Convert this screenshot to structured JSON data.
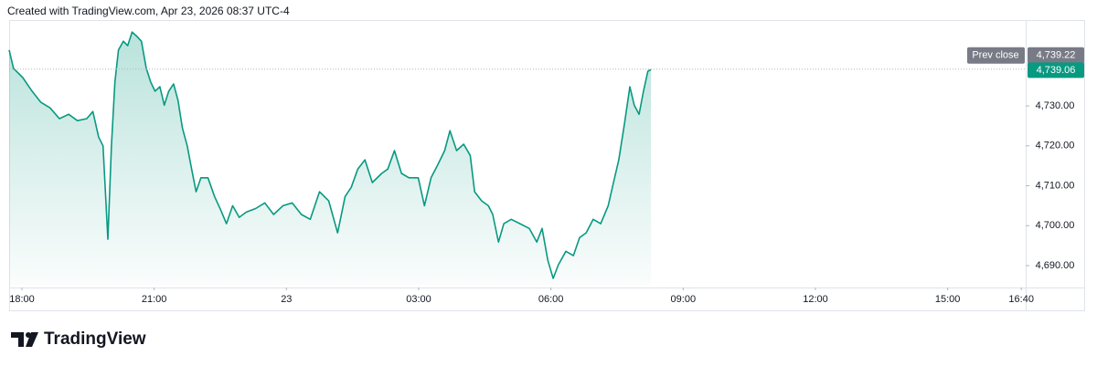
{
  "chart_data": {
    "type": "area",
    "title": "Created with TradingView.com, Apr 23, 2026 08:37 UTC-4",
    "brand": "TradingView",
    "x": [
      -0.29,
      -0.19,
      0.02,
      0.23,
      0.43,
      0.64,
      0.85,
      1.06,
      1.26,
      1.47,
      1.61,
      1.74,
      1.84,
      1.95,
      2.03,
      2.11,
      2.19,
      2.3,
      2.4,
      2.5,
      2.61,
      2.71,
      2.82,
      2.92,
      3.02,
      3.13,
      3.23,
      3.33,
      3.44,
      3.54,
      3.64,
      3.75,
      3.85,
      3.95,
      4.06,
      4.22,
      4.37,
      4.51,
      4.64,
      4.78,
      4.93,
      5.09,
      5.3,
      5.51,
      5.71,
      5.92,
      6.13,
      6.34,
      6.54,
      6.75,
      6.96,
      7.16,
      7.33,
      7.47,
      7.62,
      7.78,
      7.95,
      8.16,
      8.3,
      8.45,
      8.61,
      8.78,
      8.99,
      9.13,
      9.28,
      9.44,
      9.59,
      9.71,
      9.86,
      10.02,
      10.17,
      10.27,
      10.43,
      10.58,
      10.68,
      10.81,
      10.93,
      11.1,
      11.3,
      11.51,
      11.68,
      11.8,
      11.93,
      12.05,
      12.17,
      12.34,
      12.51,
      12.65,
      12.8,
      12.96,
      13.13,
      13.3,
      13.42,
      13.54,
      13.67,
      13.79,
      13.89,
      14.0,
      14.1,
      14.2,
      14.27
    ],
    "series": [
      {
        "color": "#089981",
        "values": [
          4744.0,
          4739.4,
          4737.1,
          4733.7,
          4730.9,
          4729.5,
          4726.8,
          4727.9,
          4726.3,
          4726.8,
          4728.6,
          4722.2,
          4720.0,
          4696.6,
          4720.0,
          4736.0,
          4744.0,
          4746.2,
          4745.1,
          4748.5,
          4747.4,
          4746.2,
          4739.4,
          4736.0,
          4733.7,
          4734.8,
          4730.2,
          4733.7,
          4735.5,
          4731.4,
          4724.5,
          4720.0,
          4714.2,
          4708.5,
          4712.0,
          4712.0,
          4707.3,
          4703.9,
          4700.5,
          4705.0,
          4702.1,
          4703.4,
          4704.3,
          4705.7,
          4702.8,
          4705.0,
          4705.7,
          4702.8,
          4701.6,
          4708.5,
          4706.2,
          4698.2,
          4707.3,
          4709.6,
          4714.2,
          4716.5,
          4710.8,
          4713.1,
          4714.2,
          4718.8,
          4713.1,
          4712.0,
          4712.0,
          4705.0,
          4712.0,
          4715.4,
          4718.8,
          4723.8,
          4718.8,
          4720.4,
          4717.6,
          4708.5,
          4706.2,
          4705.0,
          4702.8,
          4695.9,
          4700.5,
          4701.6,
          4700.5,
          4699.3,
          4695.9,
          4699.3,
          4691.3,
          4686.8,
          4690.2,
          4693.6,
          4692.5,
          4697.0,
          4698.2,
          4701.6,
          4700.5,
          4705.0,
          4710.8,
          4716.5,
          4725.7,
          4734.8,
          4730.2,
          4727.9,
          4733.7,
          4738.7,
          4739.06
        ]
      }
    ],
    "xlim": [
      -0.29,
      22.77
    ],
    "xticks": [
      {
        "value": 0,
        "label": "18:00"
      },
      {
        "value": 3,
        "label": "21:00"
      },
      {
        "value": 6,
        "label": "23"
      },
      {
        "value": 9,
        "label": "03:00"
      },
      {
        "value": 12,
        "label": "06:00"
      },
      {
        "value": 15,
        "label": "09:00"
      },
      {
        "value": 18,
        "label": "12:00"
      },
      {
        "value": 21,
        "label": "15:00"
      },
      {
        "value": 22.67,
        "label": "16:40"
      }
    ],
    "ylim": [
      4685.2,
      4751.5
    ],
    "yticks": [
      {
        "value": 4690,
        "label": "4,690.00"
      },
      {
        "value": 4700,
        "label": "4,700.00"
      },
      {
        "value": 4710,
        "label": "4,710.00"
      },
      {
        "value": 4720,
        "label": "4,720.00"
      },
      {
        "value": 4730,
        "label": "4,730.00"
      }
    ],
    "prev_close": {
      "label": "Prev close",
      "value": 4739.22,
      "value_label": "4,739.22",
      "color": "#787b86"
    },
    "last_price": {
      "value": 4739.06,
      "label": "4,739.06",
      "color": "#089981"
    }
  }
}
